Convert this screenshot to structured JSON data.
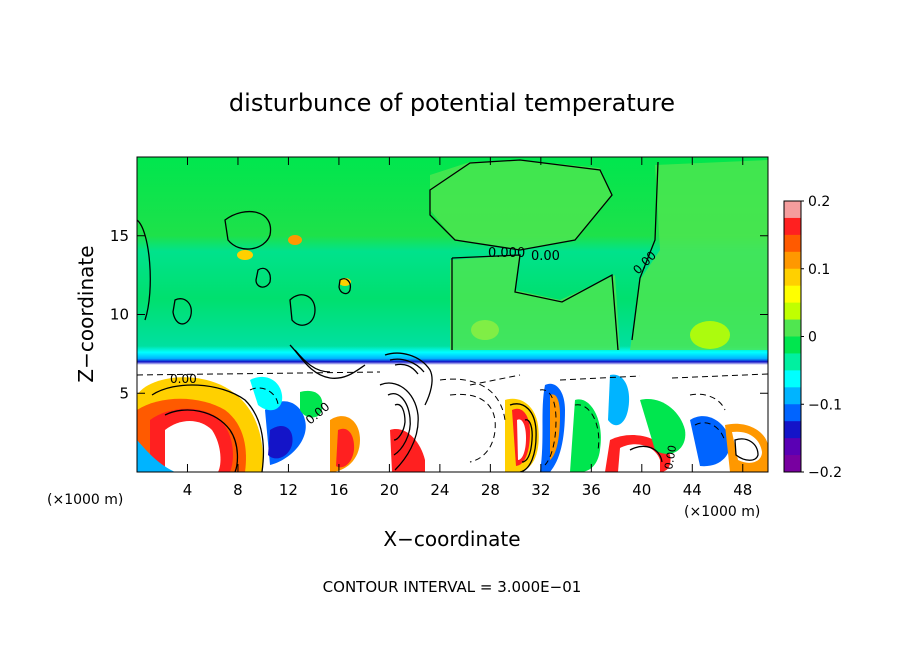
{
  "chart_data": {
    "type": "heatmap",
    "title": "disturbunce of potential temperature",
    "xlabel": "X−coordinate",
    "ylabel": "Z−coordinate",
    "x_unit_left": "(×1000 m)",
    "x_unit_right": "(×1000 m)",
    "xlim": [
      0,
      50
    ],
    "ylim": [
      0,
      20
    ],
    "x_ticks": [
      4,
      8,
      12,
      16,
      20,
      24,
      28,
      32,
      36,
      40,
      44,
      48
    ],
    "y_ticks": [
      5,
      10,
      15
    ],
    "colorbar": {
      "range": [
        -0.2,
        0.2
      ],
      "tick_values": [
        0.2,
        0.1,
        0,
        -0.1,
        -0.2
      ],
      "tick_labels": [
        "0.2",
        "0.1",
        "0",
        "−0.1",
        "−0.2"
      ],
      "colors": [
        "#f59d9d",
        "#ff2020",
        "#ff5a00",
        "#ff9800",
        "#ffd000",
        "#ffff00",
        "#c0ff00",
        "#50e650",
        "#00e64e",
        "#00f0a0",
        "#00ffff",
        "#00b4ff",
        "#0064ff",
        "#1414c8",
        "#5a00b4",
        "#7800a0"
      ]
    },
    "contour_labels": [
      "0.00",
      "0.000",
      "0.00",
      "0.00",
      "0.00",
      "0.00"
    ],
    "footer": "CONTOUR INTERVAL = 3.000E−01"
  }
}
